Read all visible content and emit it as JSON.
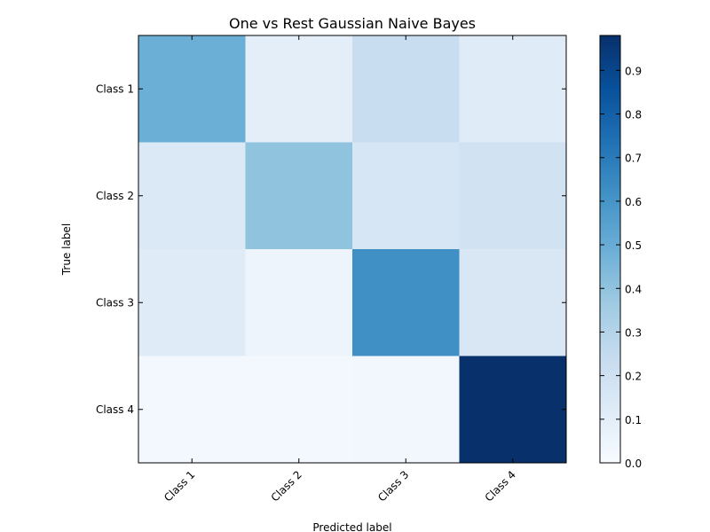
{
  "chart_data": {
    "type": "heatmap",
    "title": "One vs Rest Gaussian Naive Bayes",
    "xlabel": "Predicted label",
    "ylabel": "True label",
    "x_categories": [
      "Class 1",
      "Class 2",
      "Class 3",
      "Class 4"
    ],
    "y_categories": [
      "Class 1",
      "Class 2",
      "Class 3",
      "Class 4"
    ],
    "values": [
      [
        0.49,
        0.1,
        0.23,
        0.12
      ],
      [
        0.14,
        0.4,
        0.16,
        0.19
      ],
      [
        0.12,
        0.05,
        0.62,
        0.15
      ],
      [
        0.02,
        0.02,
        0.03,
        0.98
      ]
    ],
    "colorbar": {
      "min": 0.0,
      "max": 0.98,
      "ticks": [
        "0.0",
        "0.1",
        "0.2",
        "0.3",
        "0.4",
        "0.5",
        "0.6",
        "0.7",
        "0.8",
        "0.9"
      ]
    },
    "colormap": [
      "#f7fbff",
      "#deebf7",
      "#c6dbef",
      "#9ecae1",
      "#6baed6",
      "#4292c6",
      "#2171b5",
      "#08519c",
      "#08306b"
    ],
    "grid": false
  }
}
